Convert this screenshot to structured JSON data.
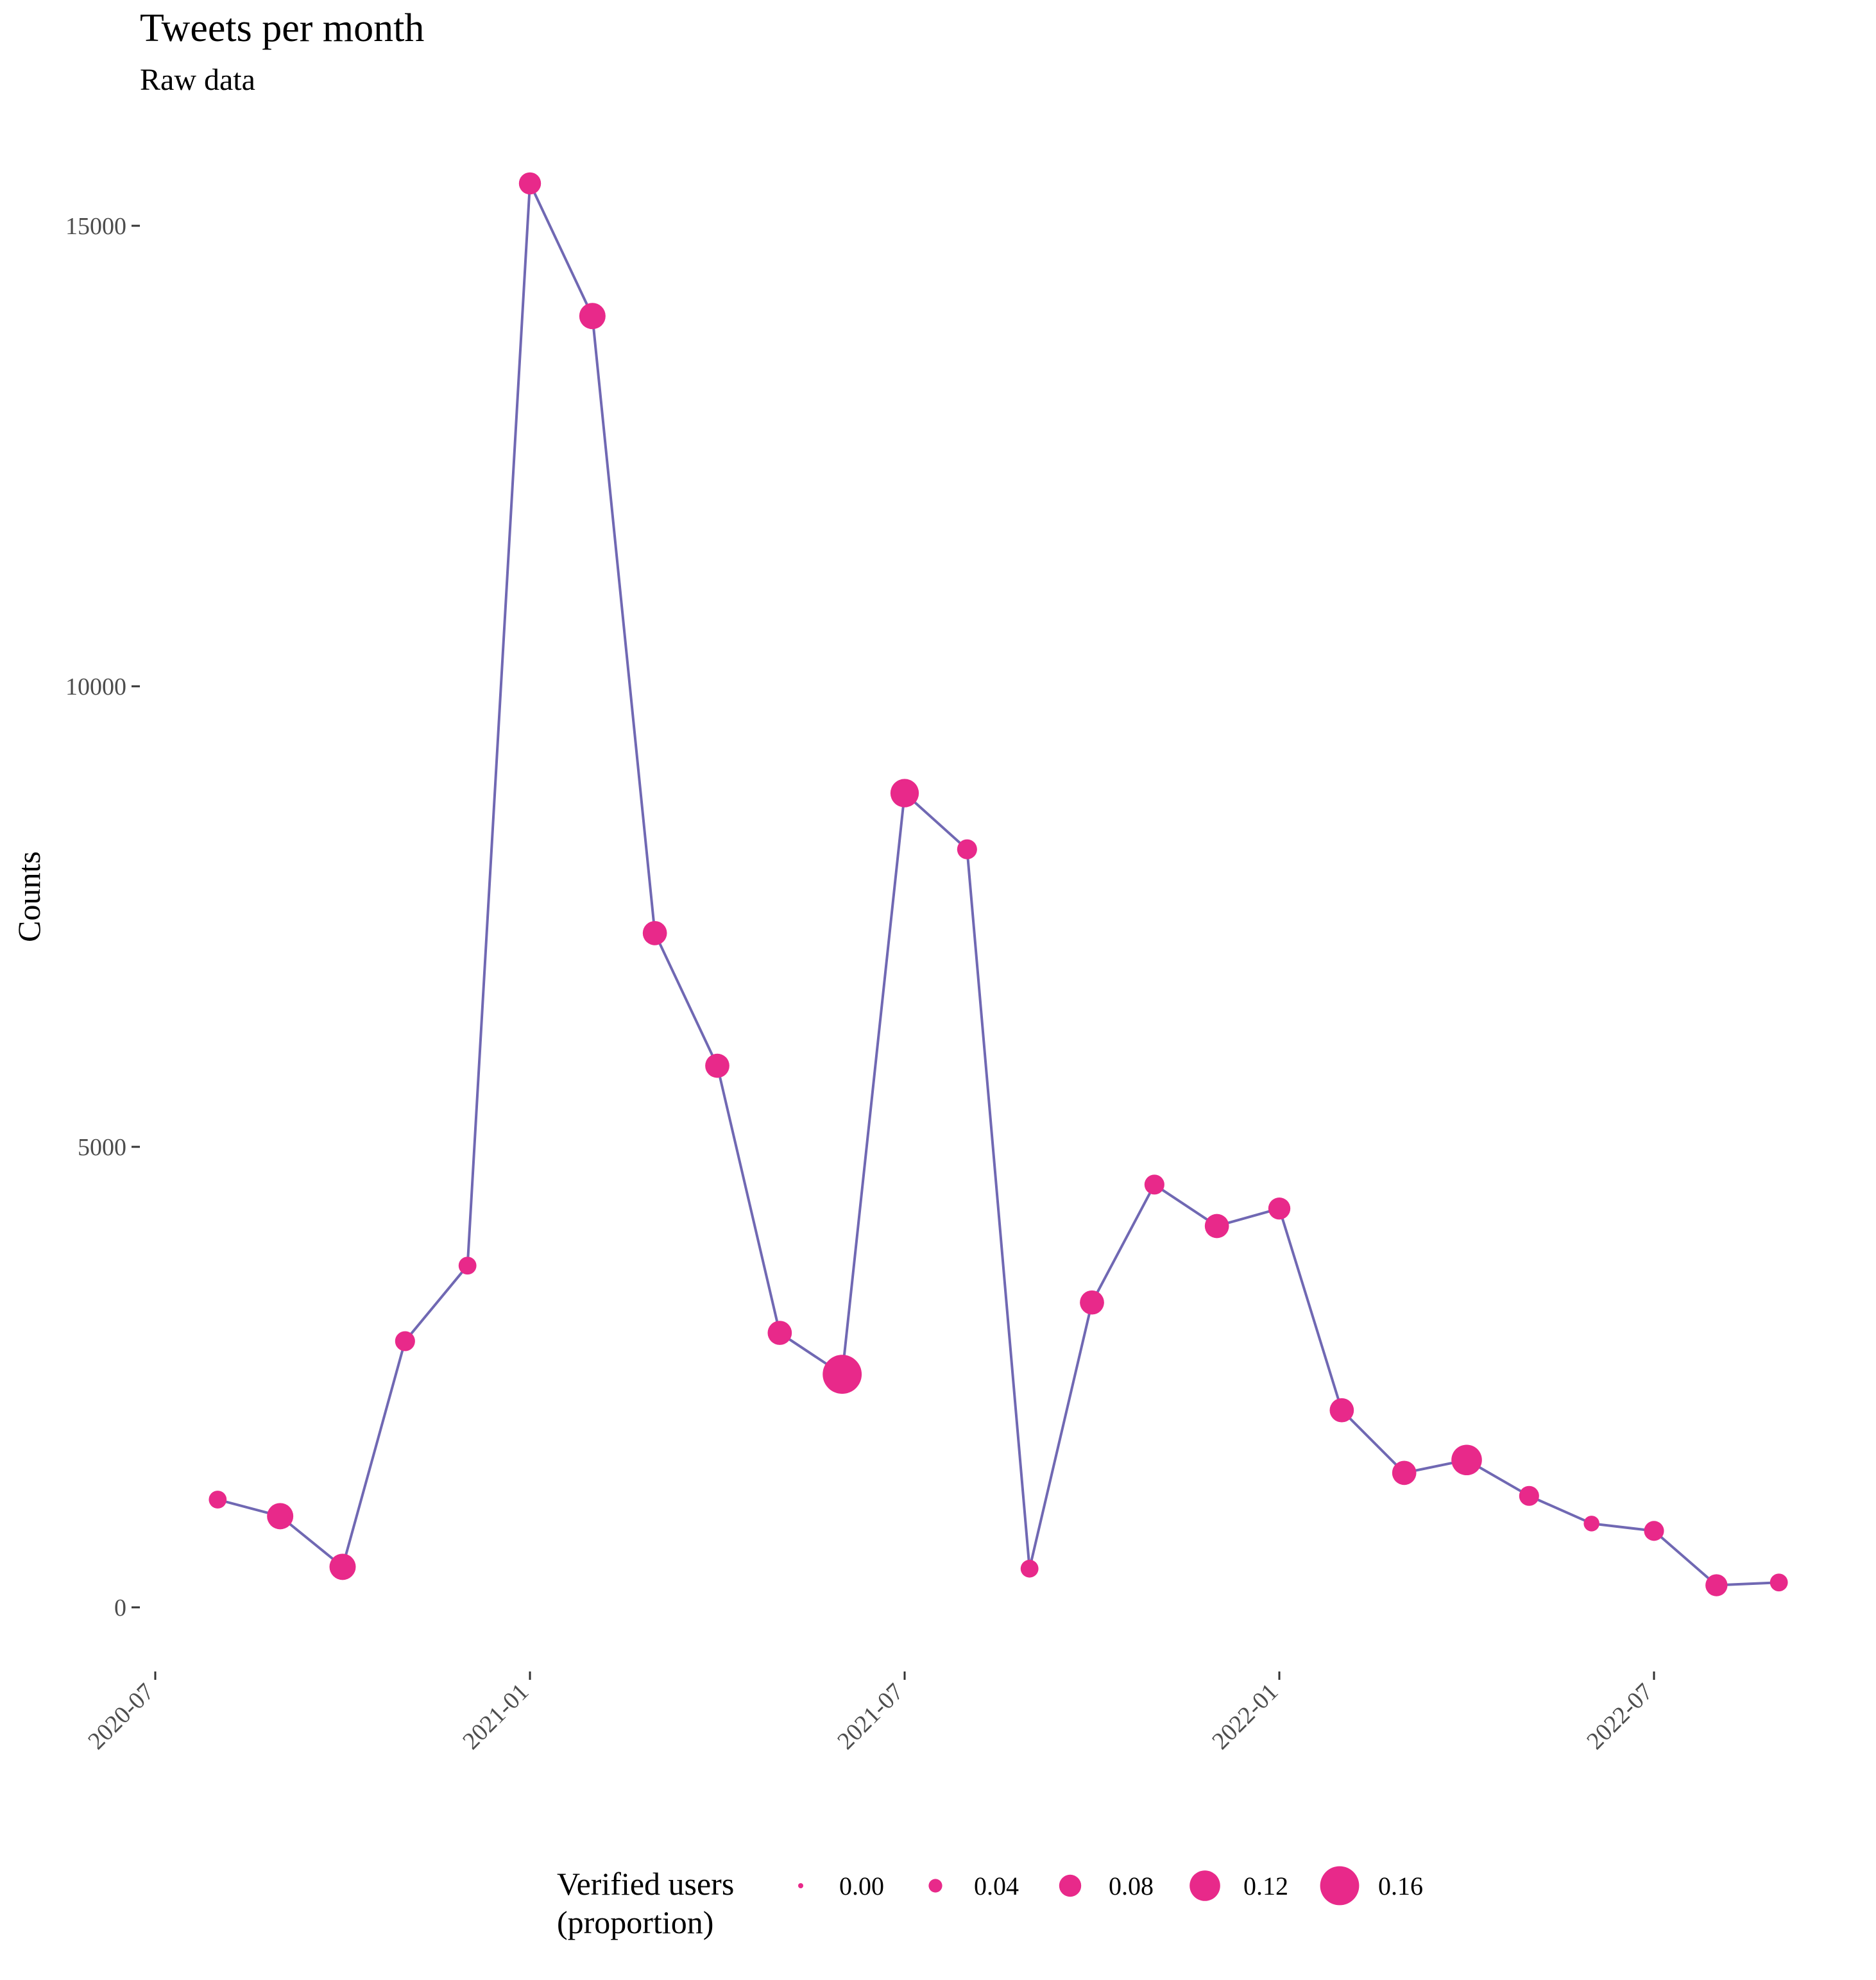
{
  "chart_data": {
    "type": "line",
    "title": "Tweets per month",
    "subtitle": "Raw data",
    "xlabel": "",
    "ylabel": "Counts",
    "x_ticks": [
      "2020-07",
      "2021-01",
      "2021-07",
      "2022-01",
      "2022-07"
    ],
    "y_ticks": [
      0,
      5000,
      10000,
      15000
    ],
    "ylim": [
      -800,
      15900
    ],
    "grid": false,
    "line_color": "#7068b3",
    "point_color": "#e8298a",
    "size_legend": {
      "title_lines": [
        "Verified users",
        "(proportion)"
      ],
      "placement": "bottom",
      "values": [
        0.0,
        0.04,
        0.08,
        0.12,
        0.16
      ],
      "labels": [
        "0.00",
        "0.04",
        "0.08",
        "0.12",
        "0.16"
      ]
    },
    "x": [
      "2020-08",
      "2020-09",
      "2020-10",
      "2020-11",
      "2020-12",
      "2021-01",
      "2021-02",
      "2021-03",
      "2021-04",
      "2021-05",
      "2021-06",
      "2021-07",
      "2021-08",
      "2021-09",
      "2021-10",
      "2021-11",
      "2021-12",
      "2022-01",
      "2022-02",
      "2022-03",
      "2022-04",
      "2022-05",
      "2022-06",
      "2022-07",
      "2022-08",
      "2022-09"
    ],
    "series": [
      {
        "values": [
          1170,
          990,
          440,
          2890,
          3710,
          15460,
          14020,
          7320,
          5880,
          2980,
          2530,
          8840,
          8230,
          420,
          3310,
          4590,
          4140,
          4330,
          2140,
          1460,
          1600,
          1210,
          910,
          830,
          240,
          270
        ],
        "verified_proportion": [
          0.06,
          0.1,
          0.1,
          0.07,
          0.06,
          0.08,
          0.1,
          0.09,
          0.09,
          0.09,
          0.16,
          0.11,
          0.07,
          0.06,
          0.09,
          0.07,
          0.09,
          0.08,
          0.09,
          0.09,
          0.12,
          0.07,
          0.05,
          0.07,
          0.08,
          0.06
        ]
      }
    ]
  }
}
